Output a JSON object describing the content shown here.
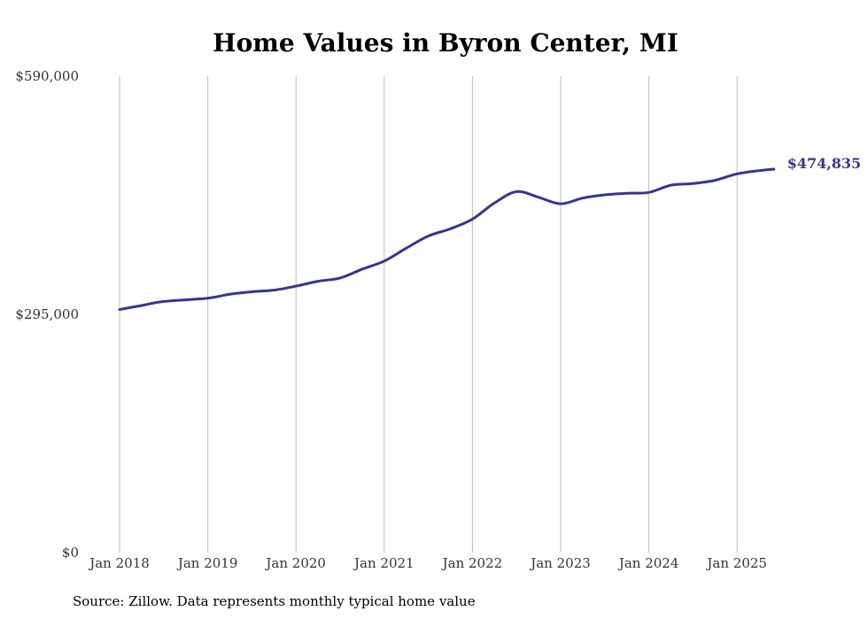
{
  "chart_data": {
    "type": "line",
    "title": "Home Values in Byron Center, MI",
    "source": "Source: Zillow. Data represents monthly typical home value",
    "y_ticks": [
      {
        "value": 0,
        "label": "$0"
      },
      {
        "value": 295000,
        "label": "$295,000"
      },
      {
        "value": 590000,
        "label": "$590,000"
      }
    ],
    "x_ticks": [
      {
        "value": "2018-01",
        "label": "Jan 2018"
      },
      {
        "value": "2019-01",
        "label": "Jan 2019"
      },
      {
        "value": "2020-01",
        "label": "Jan 2020"
      },
      {
        "value": "2021-01",
        "label": "Jan 2021"
      },
      {
        "value": "2022-01",
        "label": "Jan 2022"
      },
      {
        "value": "2023-01",
        "label": "Jan 2023"
      },
      {
        "value": "2024-01",
        "label": "Jan 2024"
      },
      {
        "value": "2025-01",
        "label": "Jan 2025"
      }
    ],
    "ylim": [
      0,
      590000
    ],
    "xlim": [
      "2018-01",
      "2025-06"
    ],
    "grid": "vertical",
    "line_color": "#353595",
    "series": [
      {
        "x": [
          "2018-01",
          "2018-04",
          "2018-07",
          "2019-01",
          "2019-04",
          "2019-07",
          "2019-10",
          "2020-01",
          "2020-04",
          "2020-07",
          "2020-10",
          "2021-01",
          "2021-04",
          "2021-07",
          "2021-10",
          "2022-01",
          "2022-04",
          "2022-07",
          "2022-10",
          "2023-01",
          "2023-04",
          "2023-07",
          "2023-10",
          "2024-01",
          "2024-04",
          "2024-07",
          "2024-10",
          "2025-01",
          "2025-04",
          "2025-06"
        ],
        "y": [
          301000,
          306000,
          311000,
          315000,
          320000,
          323000,
          325000,
          330000,
          336000,
          340000,
          351000,
          361000,
          377000,
          392000,
          401000,
          413000,
          433000,
          447000,
          440000,
          432000,
          439000,
          443000,
          445000,
          446000,
          455000,
          457000,
          461000,
          469000,
          473000,
          474835
        ]
      }
    ],
    "end_label": "$474,835"
  }
}
